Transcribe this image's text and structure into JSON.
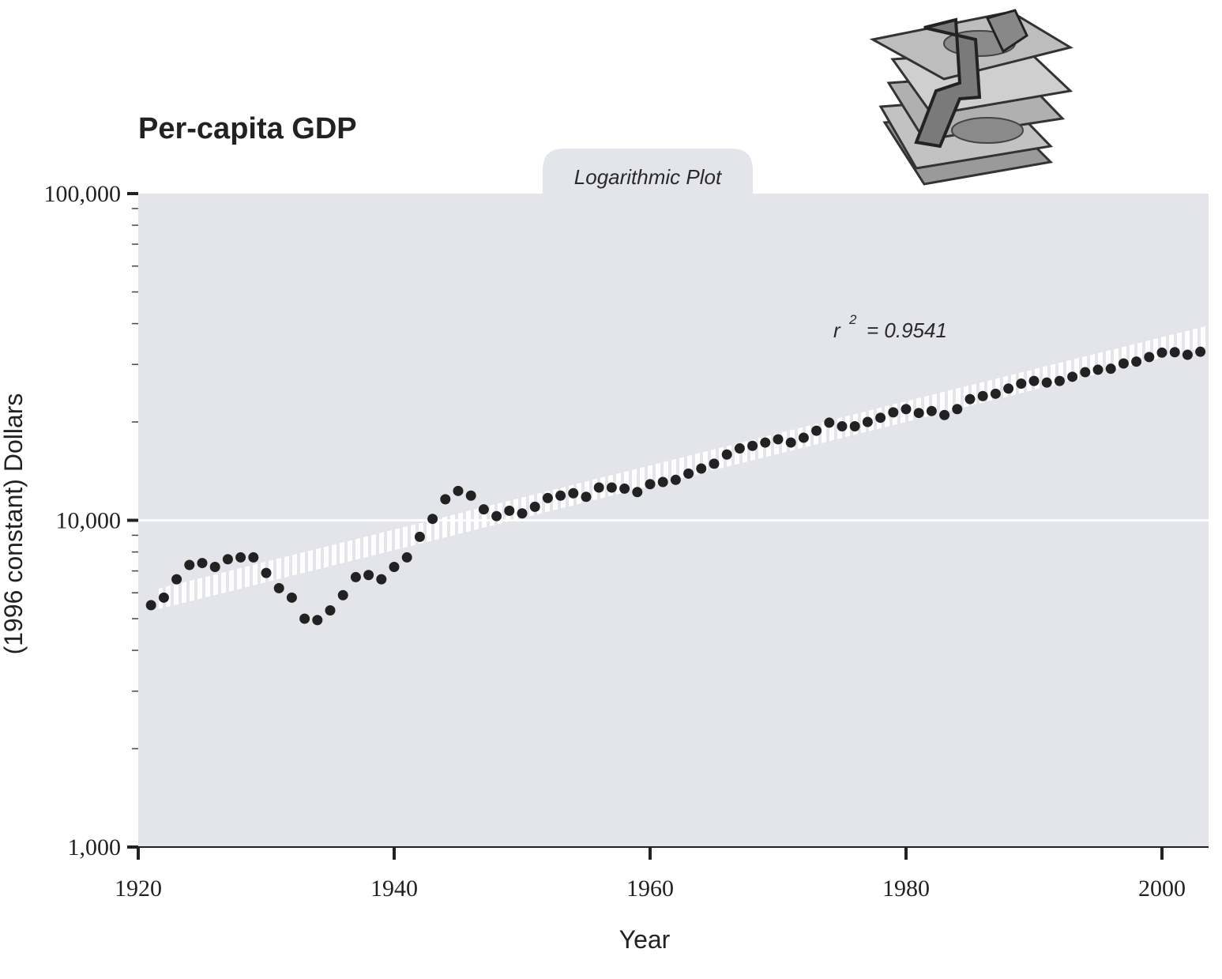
{
  "chart_data": {
    "type": "scatter",
    "title": "Per-capita GDP",
    "subtitle": "Logarithmic Plot",
    "xlabel": "Year",
    "ylabel": "(1996 constant) Dollars",
    "y_scale": "log",
    "xlim": [
      1920,
      2004
    ],
    "ylim": [
      1000,
      100000
    ],
    "x_ticks": [
      1920,
      1940,
      1960,
      1980,
      2000
    ],
    "x_tick_labels": [
      "1920",
      "1940",
      "1960",
      "1980",
      "2000"
    ],
    "y_ticks": [
      1000,
      10000,
      100000
    ],
    "y_tick_labels": [
      "1,000",
      "10,000",
      "100,000"
    ],
    "grid": "horizontal line at 10,000",
    "background_color": "#e4e5ea",
    "point_color": "#222222",
    "trend_color": "#ffffff",
    "annotation": {
      "base": "r",
      "exponent": "2",
      "value": "= 0.9541"
    },
    "trend_line": {
      "x": [
        1921.6,
        2004
      ],
      "y": [
        5750,
        37000
      ]
    },
    "series": [
      {
        "x": [
          1921,
          1922,
          1923,
          1924,
          1925,
          1926,
          1927,
          1928,
          1929,
          1930,
          1931,
          1932,
          1933,
          1934,
          1935,
          1936,
          1937,
          1938,
          1939,
          1940,
          1941,
          1942,
          1943,
          1944,
          1945,
          1946,
          1947,
          1948,
          1949,
          1950,
          1951,
          1952,
          1953,
          1954,
          1955,
          1956,
          1957,
          1958,
          1959,
          1960,
          1961,
          1962,
          1963,
          1964,
          1965,
          1966,
          1967,
          1968,
          1969,
          1970,
          1971,
          1972,
          1973,
          1974,
          1975,
          1976,
          1977,
          1978,
          1979,
          1980,
          1981,
          1982,
          1983,
          1984,
          1985,
          1986,
          1987,
          1988,
          1989,
          1990,
          1991,
          1992,
          1993,
          1994,
          1995,
          1996,
          1997,
          1998,
          1999,
          2000,
          2001,
          2002,
          2003
        ],
        "y": [
          5500,
          5800,
          6600,
          7300,
          7400,
          7200,
          7600,
          7700,
          7700,
          6900,
          6200,
          5800,
          5000,
          4950,
          5300,
          5900,
          6700,
          6800,
          6600,
          7200,
          7700,
          8900,
          10100,
          11600,
          12300,
          11900,
          10800,
          10300,
          10700,
          10500,
          11000,
          11700,
          11900,
          12100,
          11800,
          12600,
          12600,
          12500,
          12200,
          12900,
          13100,
          13300,
          13900,
          14400,
          14900,
          15900,
          16600,
          16900,
          17300,
          17700,
          17300,
          17900,
          18800,
          19900,
          19400,
          19400,
          20000,
          20600,
          21400,
          21900,
          21300,
          21600,
          21000,
          21900,
          23500,
          24000,
          24400,
          25300,
          26200,
          26700,
          26400,
          26700,
          27500,
          28400,
          28900,
          29100,
          30200,
          30600,
          31600,
          32600,
          32700,
          32100,
          32800
        ]
      }
    ]
  }
}
